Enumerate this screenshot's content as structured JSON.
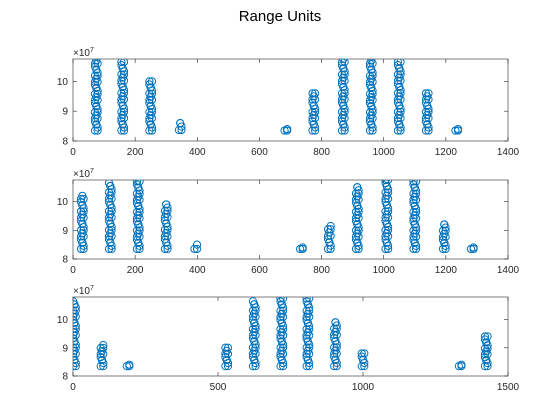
{
  "chart_data": {
    "title": "Range Units",
    "type": "scatter",
    "marker_color": "#0072BD",
    "marker": "open-circle",
    "subplots": [
      {
        "type": "scatter",
        "xlim": [
          0,
          1400
        ],
        "ylim": [
          80000000,
          107500000
        ],
        "xticks": [
          0,
          200,
          400,
          600,
          800,
          1000,
          1200,
          1400
        ],
        "yticks": [
          80000000,
          90000000,
          100000000
        ],
        "ytick_labels": [
          "8",
          "9",
          "10"
        ],
        "y_exponent_label": "×10",
        "y_exponent_power": "7",
        "grid": false,
        "clusters": [
          {
            "x": 75,
            "y_min": 83500000,
            "y_max": 107000000
          },
          {
            "x": 160,
            "y_min": 83500000,
            "y_max": 106500000
          },
          {
            "x": 250,
            "y_min": 83500000,
            "y_max": 100000000
          },
          {
            "x": 345,
            "y_min": 83700000,
            "y_max": 86000000
          },
          {
            "x": 685,
            "y_min": 83500000,
            "y_max": 84000000
          },
          {
            "x": 775,
            "y_min": 83500000,
            "y_max": 96000000
          },
          {
            "x": 870,
            "y_min": 83500000,
            "y_max": 107500000
          },
          {
            "x": 960,
            "y_min": 83500000,
            "y_max": 107000000
          },
          {
            "x": 1050,
            "y_min": 83500000,
            "y_max": 106500000
          },
          {
            "x": 1140,
            "y_min": 83500000,
            "y_max": 96000000
          },
          {
            "x": 1235,
            "y_min": 83500000,
            "y_max": 84000000
          }
        ]
      },
      {
        "type": "scatter",
        "xlim": [
          0,
          1400
        ],
        "ylim": [
          80000000,
          107500000
        ],
        "xticks": [
          0,
          200,
          400,
          600,
          800,
          1000,
          1200,
          1400
        ],
        "yticks": [
          80000000,
          90000000,
          100000000
        ],
        "ytick_labels": [
          "8",
          "9",
          "10"
        ],
        "y_exponent_label": "×10",
        "y_exponent_power": "7",
        "grid": false,
        "clusters": [
          {
            "x": 30,
            "y_min": 83500000,
            "y_max": 102000000
          },
          {
            "x": 120,
            "y_min": 83500000,
            "y_max": 106500000
          },
          {
            "x": 210,
            "y_min": 83500000,
            "y_max": 107000000
          },
          {
            "x": 300,
            "y_min": 83500000,
            "y_max": 99000000
          },
          {
            "x": 395,
            "y_min": 83500000,
            "y_max": 85000000
          },
          {
            "x": 735,
            "y_min": 83500000,
            "y_max": 84000000
          },
          {
            "x": 825,
            "y_min": 83500000,
            "y_max": 91500000
          },
          {
            "x": 915,
            "y_min": 83500000,
            "y_max": 105000000
          },
          {
            "x": 1010,
            "y_min": 83500000,
            "y_max": 107500000
          },
          {
            "x": 1100,
            "y_min": 83500000,
            "y_max": 107000000
          },
          {
            "x": 1195,
            "y_min": 83500000,
            "y_max": 92000000
          },
          {
            "x": 1285,
            "y_min": 83500000,
            "y_max": 84000000
          }
        ]
      },
      {
        "type": "scatter",
        "xlim": [
          0,
          1500
        ],
        "ylim": [
          80000000,
          108000000
        ],
        "xticks": [
          0,
          500,
          1000,
          1500
        ],
        "yticks": [
          80000000,
          90000000,
          100000000
        ],
        "ytick_labels": [
          "8",
          "9",
          "10"
        ],
        "y_exponent_label": "×10",
        "y_exponent_power": "7",
        "grid": false,
        "clusters": [
          {
            "x": 5,
            "y_min": 83500000,
            "y_max": 106500000
          },
          {
            "x": 100,
            "y_min": 83500000,
            "y_max": 91000000
          },
          {
            "x": 190,
            "y_min": 83500000,
            "y_max": 84000000
          },
          {
            "x": 530,
            "y_min": 83500000,
            "y_max": 90000000
          },
          {
            "x": 625,
            "y_min": 83500000,
            "y_max": 106500000
          },
          {
            "x": 720,
            "y_min": 83500000,
            "y_max": 107500000
          },
          {
            "x": 810,
            "y_min": 83500000,
            "y_max": 107500000
          },
          {
            "x": 905,
            "y_min": 83500000,
            "y_max": 99000000
          },
          {
            "x": 1000,
            "y_min": 83500000,
            "y_max": 88000000
          },
          {
            "x": 1335,
            "y_min": 83500000,
            "y_max": 84000000
          },
          {
            "x": 1425,
            "y_min": 83500000,
            "y_max": 94000000
          }
        ]
      }
    ]
  }
}
